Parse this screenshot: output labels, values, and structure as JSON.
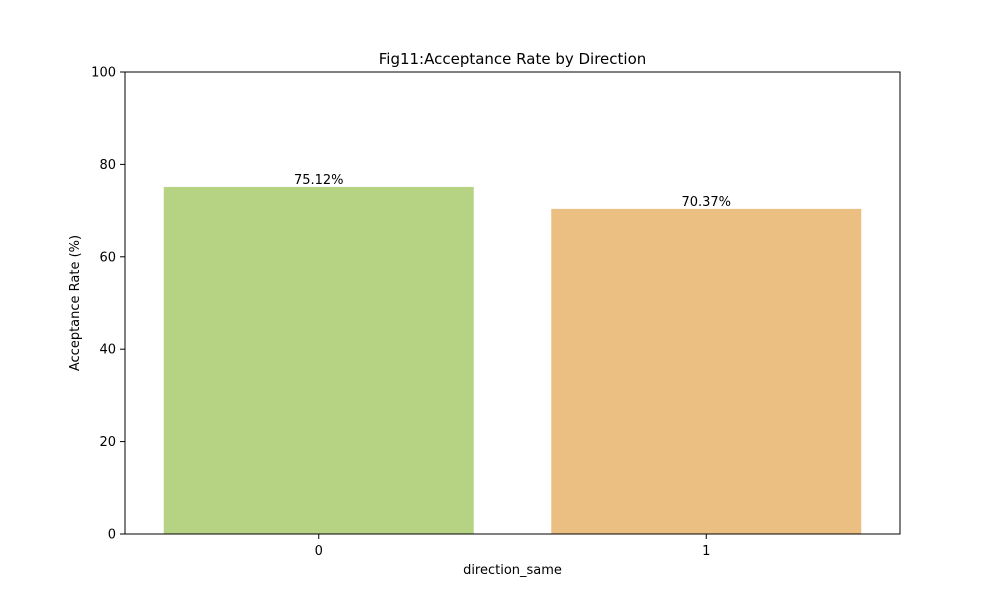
{
  "chart_data": {
    "type": "bar",
    "title": "Fig11:Acceptance Rate by Direction",
    "xlabel": "direction_same",
    "ylabel": "Acceptance Rate (%)",
    "categories": [
      "0",
      "1"
    ],
    "values": [
      75.12,
      70.37
    ],
    "value_labels": [
      "75.12%",
      "70.37%"
    ],
    "bar_colors": [
      "#b5d383",
      "#ebbe82"
    ],
    "ylim": [
      0,
      100
    ],
    "yticks": [
      0,
      20,
      40,
      60,
      80,
      100
    ],
    "grid": false,
    "legend": "none"
  }
}
